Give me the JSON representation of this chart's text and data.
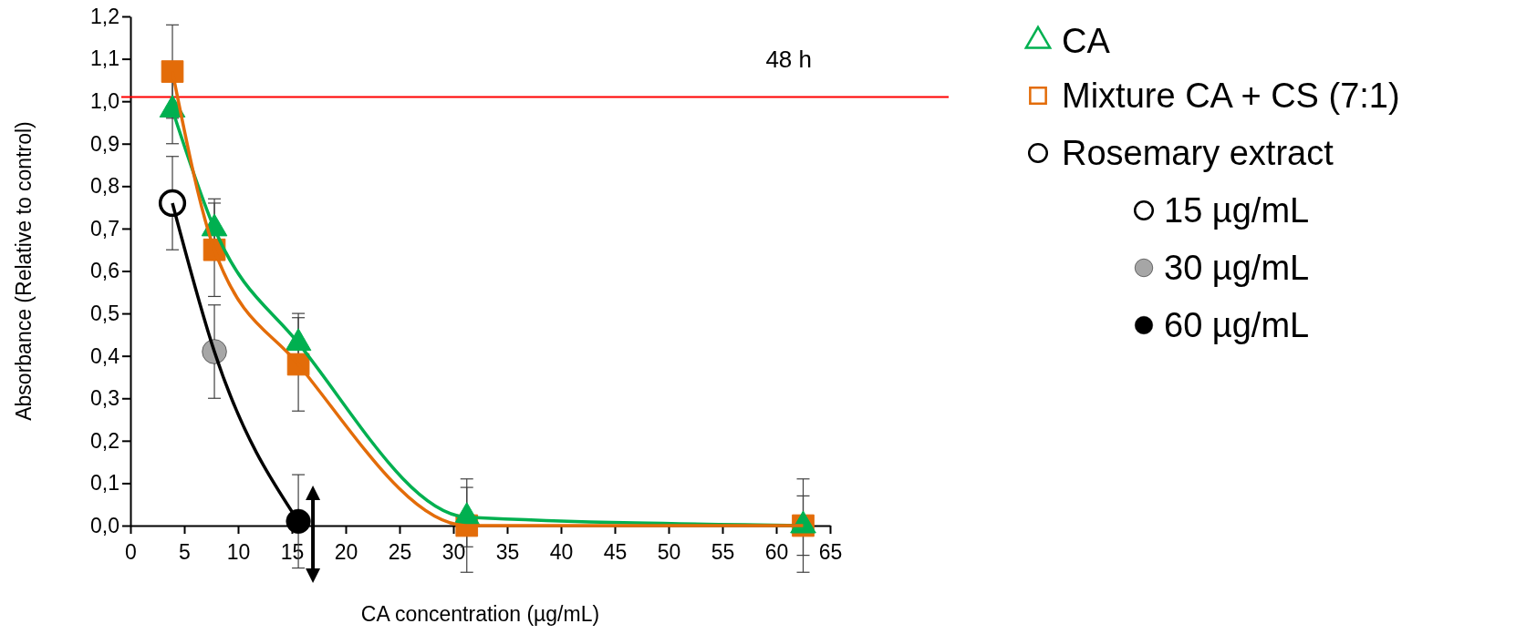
{
  "chart_data": {
    "type": "line",
    "xlabel": "CA concentration (µg/mL)",
    "ylabel": "Absorbance (Relative to control)",
    "annotations": [
      "48 h"
    ],
    "xlim": [
      0,
      65
    ],
    "xticks": [
      0,
      5,
      10,
      15,
      20,
      25,
      30,
      35,
      40,
      45,
      50,
      55,
      60,
      65
    ],
    "ylim": [
      0,
      1.2
    ],
    "yticks": [
      {
        "value": 0,
        "label": "0,0"
      },
      {
        "value": 0.1,
        "label": "0,1"
      },
      {
        "value": 0.2,
        "label": "0,2"
      },
      {
        "value": 0.3,
        "label": "0,3"
      },
      {
        "value": 0.4,
        "label": "0,4"
      },
      {
        "value": 0.5,
        "label": "0,5"
      },
      {
        "value": 0.6,
        "label": "0,6"
      },
      {
        "value": 0.7,
        "label": "0,7"
      },
      {
        "value": 0.8,
        "label": "0,8"
      },
      {
        "value": 0.9,
        "label": "0,9"
      },
      {
        "value": 1.0,
        "label": "1,0"
      },
      {
        "value": 1.1,
        "label": "1,1"
      },
      {
        "value": 1.2,
        "label": "1,2"
      }
    ],
    "grid": false,
    "legend": "right",
    "ref_lines": [
      {
        "axis": "y",
        "value": 1.01,
        "color": "#ff0000"
      }
    ],
    "series": [
      {
        "name": "CA",
        "color": "#00b050",
        "marker": "triangle",
        "x": [
          3.9,
          7.8,
          15.6,
          31.25,
          62.5
        ],
        "values": [
          0.98,
          0.7,
          0.43,
          0.02,
          0.0
        ],
        "errors": [
          0.08,
          0.07,
          0.07,
          0.07,
          0.07
        ]
      },
      {
        "name": "Mixture CA + CS (7:1)",
        "color": "#e36c09",
        "marker": "square",
        "x": [
          3.9,
          7.8,
          15.6,
          31.25,
          62.5
        ],
        "values": [
          1.07,
          0.65,
          0.38,
          0.0,
          0.0
        ],
        "errors": [
          0.11,
          0.11,
          0.11,
          0.11,
          0.11
        ]
      },
      {
        "name": "Rosemary extract",
        "color": "#000000",
        "marker": "none",
        "x": [
          3.9,
          7.8,
          15.6
        ],
        "values": [
          0.76,
          0.41,
          0.01
        ],
        "errors": [
          0.11,
          0.11,
          0.11
        ]
      },
      {
        "name": "15 µg/mL",
        "type": "scatter",
        "color": "#ffffff",
        "marker": "circle",
        "x": [
          3.9
        ],
        "values": [
          0.76
        ]
      },
      {
        "name": "30 µg/mL",
        "type": "scatter",
        "color": "#a6a6a6",
        "marker": "circle",
        "x": [
          7.8
        ],
        "values": [
          0.41
        ]
      },
      {
        "name": "60 µg/mL",
        "type": "scatter",
        "color": "#000000",
        "marker": "circle",
        "x": [
          15.6
        ],
        "values": [
          0.01
        ]
      }
    ]
  }
}
